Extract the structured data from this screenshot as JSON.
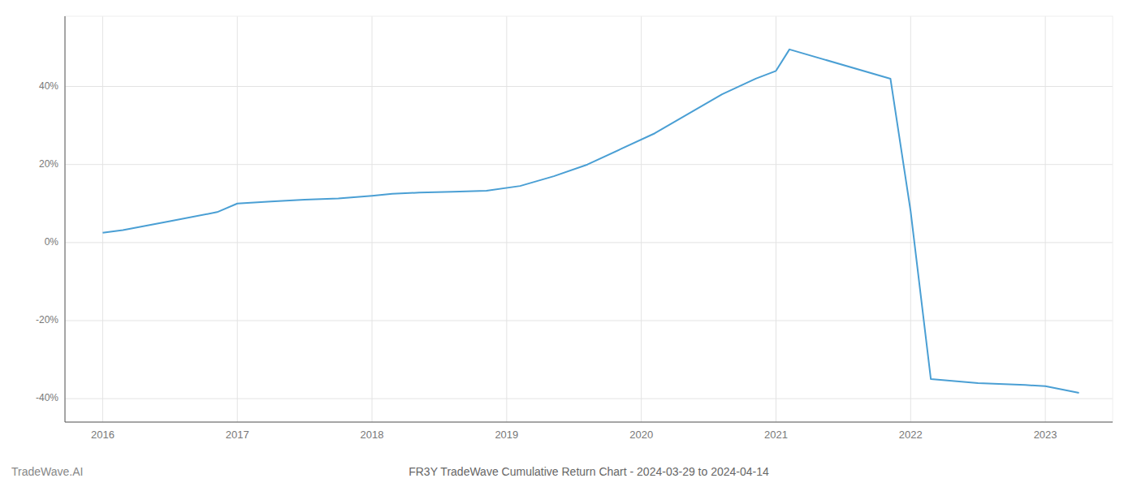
{
  "chart_data": {
    "type": "line",
    "title": "FR3Y TradeWave Cumulative Return Chart - 2024-03-29 to 2024-04-14",
    "annotations": [
      "TradeWave.AI"
    ],
    "x": [
      2016.0,
      2016.15,
      2016.5,
      2016.85,
      2017.0,
      2017.25,
      2017.5,
      2017.75,
      2018.0,
      2018.15,
      2018.35,
      2018.6,
      2018.85,
      2019.1,
      2019.35,
      2019.6,
      2019.85,
      2020.1,
      2020.35,
      2020.6,
      2020.85,
      2021.0,
      2021.1,
      2021.85,
      2022.0,
      2022.15,
      2022.5,
      2022.85,
      2023.0,
      2023.25
    ],
    "values": [
      2.5,
      3.2,
      5.5,
      7.8,
      10.0,
      10.5,
      11.0,
      11.3,
      12.0,
      12.5,
      12.8,
      13.0,
      13.3,
      14.5,
      17.0,
      20.0,
      24.0,
      28.0,
      33.0,
      38.0,
      42.0,
      44.0,
      49.5,
      42.0,
      8.0,
      -35.0,
      -36.0,
      -36.5,
      -36.8,
      -38.5
    ],
    "color": "#4a9fd4",
    "xlim": [
      2015.72,
      2023.5
    ],
    "ylim": [
      -46,
      58
    ],
    "xticks": [
      2016,
      2017,
      2018,
      2019,
      2020,
      2021,
      2022,
      2023
    ],
    "yticks": [
      {
        "value": -40,
        "label": "-40%"
      },
      {
        "value": -20,
        "label": "-20%"
      },
      {
        "value": 0,
        "label": "0%"
      },
      {
        "value": 20,
        "label": "20%"
      },
      {
        "value": 40,
        "label": "40%"
      }
    ],
    "grid": true
  }
}
